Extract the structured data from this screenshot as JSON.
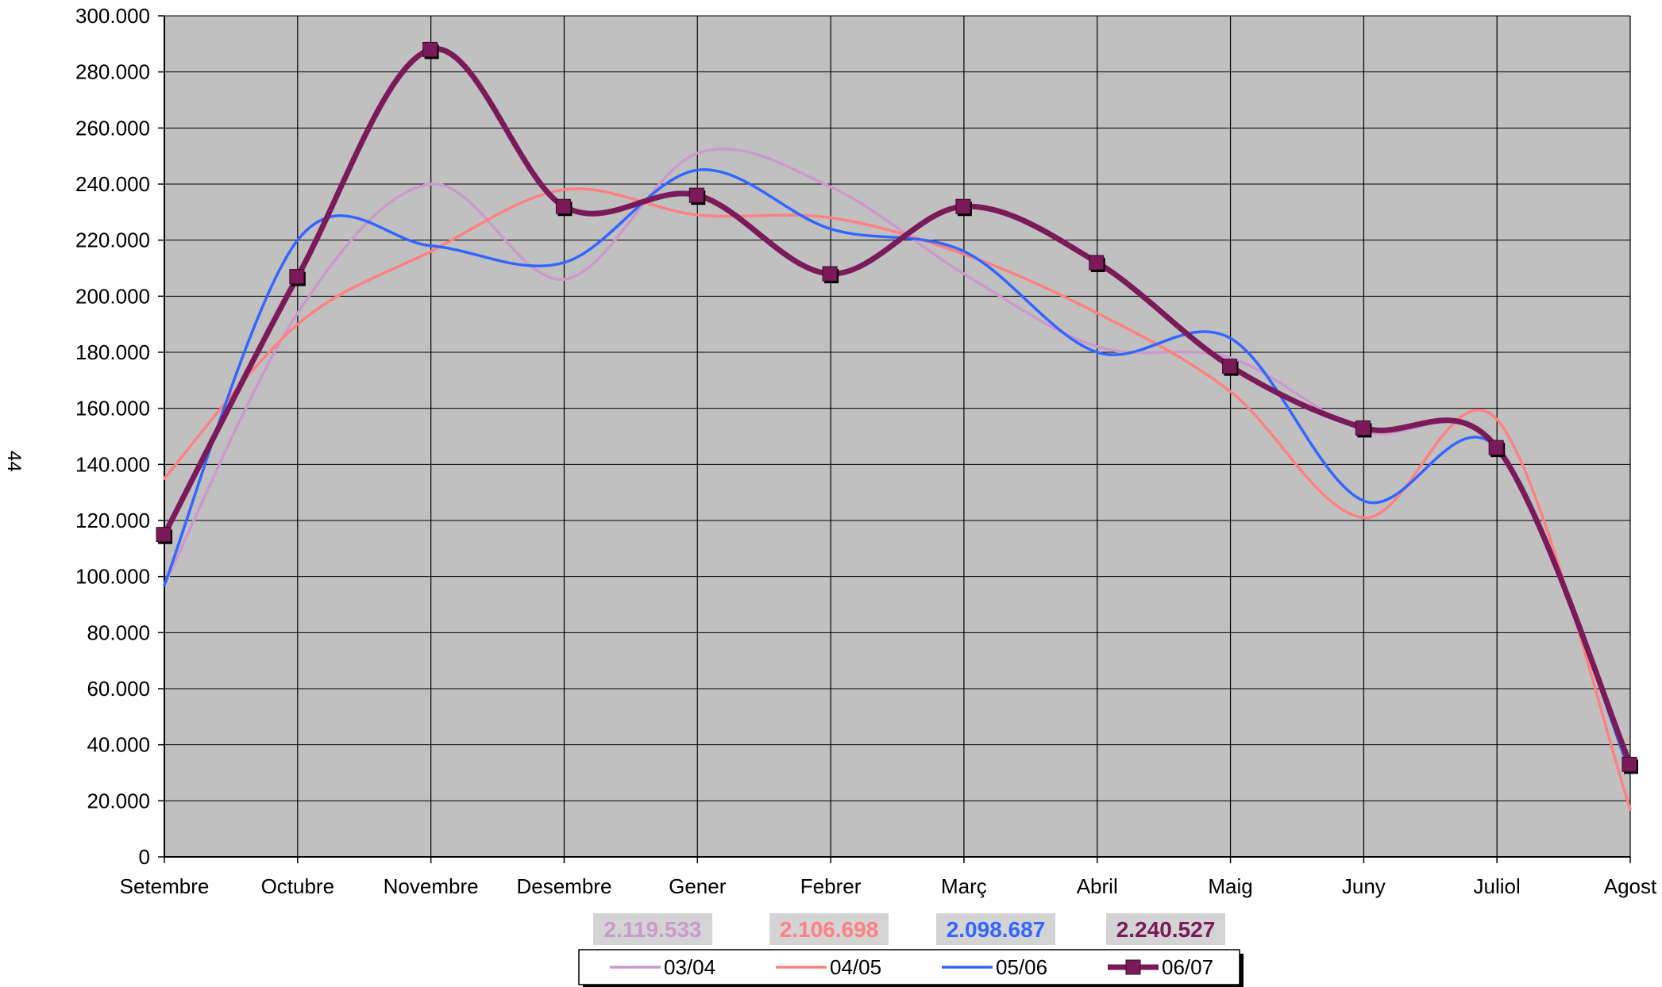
{
  "page": {
    "side_label": "44"
  },
  "chart_data": {
    "type": "line",
    "title": "",
    "xlabel": "",
    "ylabel": "",
    "categories": [
      "Setembre",
      "Octubre",
      "Novembre",
      "Desembre",
      "Gener",
      "Febrer",
      "Març",
      "Abril",
      "Maig",
      "Juny",
      "Juliol",
      "Agost"
    ],
    "ylim": [
      0,
      300000
    ],
    "y_ticks": [
      0,
      20000,
      40000,
      60000,
      80000,
      100000,
      120000,
      140000,
      160000,
      180000,
      200000,
      220000,
      240000,
      260000,
      280000,
      300000
    ],
    "y_tick_labels": [
      "0",
      "20.000",
      "40.000",
      "60.000",
      "80.000",
      "100.000",
      "120.000",
      "140.000",
      "160.000",
      "180.000",
      "200.000",
      "220.000",
      "240.000",
      "260.000",
      "280.000",
      "300.000"
    ],
    "grid": true,
    "plot_background": "#c0c0c0",
    "legend_position": "bottom",
    "series": [
      {
        "name": "03/04",
        "color": "#cc99cc",
        "values": [
          97000,
          194000,
          240000,
          206000,
          251000,
          239000,
          208000,
          182000,
          178000,
          152000,
          146000,
          33000
        ],
        "total": "2.119.533",
        "marker": "none"
      },
      {
        "name": "04/05",
        "color": "#ff8080",
        "values": [
          135000,
          190000,
          216000,
          238000,
          229000,
          228000,
          215000,
          194000,
          166000,
          121000,
          156000,
          17000
        ],
        "total": "2.106.698",
        "marker": "none"
      },
      {
        "name": "05/06",
        "color": "#3366ff",
        "values": [
          97000,
          220000,
          218000,
          212000,
          245000,
          224000,
          216000,
          180000,
          185000,
          127000,
          146000,
          30000
        ],
        "total": "2.098.687",
        "marker": "none"
      },
      {
        "name": "06/07",
        "color": "#7b1a5a",
        "values": [
          115000,
          207000,
          288000,
          232000,
          236000,
          208000,
          232000,
          212000,
          175000,
          153000,
          146000,
          33000
        ],
        "total": "2.240.527",
        "marker": "square"
      }
    ]
  }
}
